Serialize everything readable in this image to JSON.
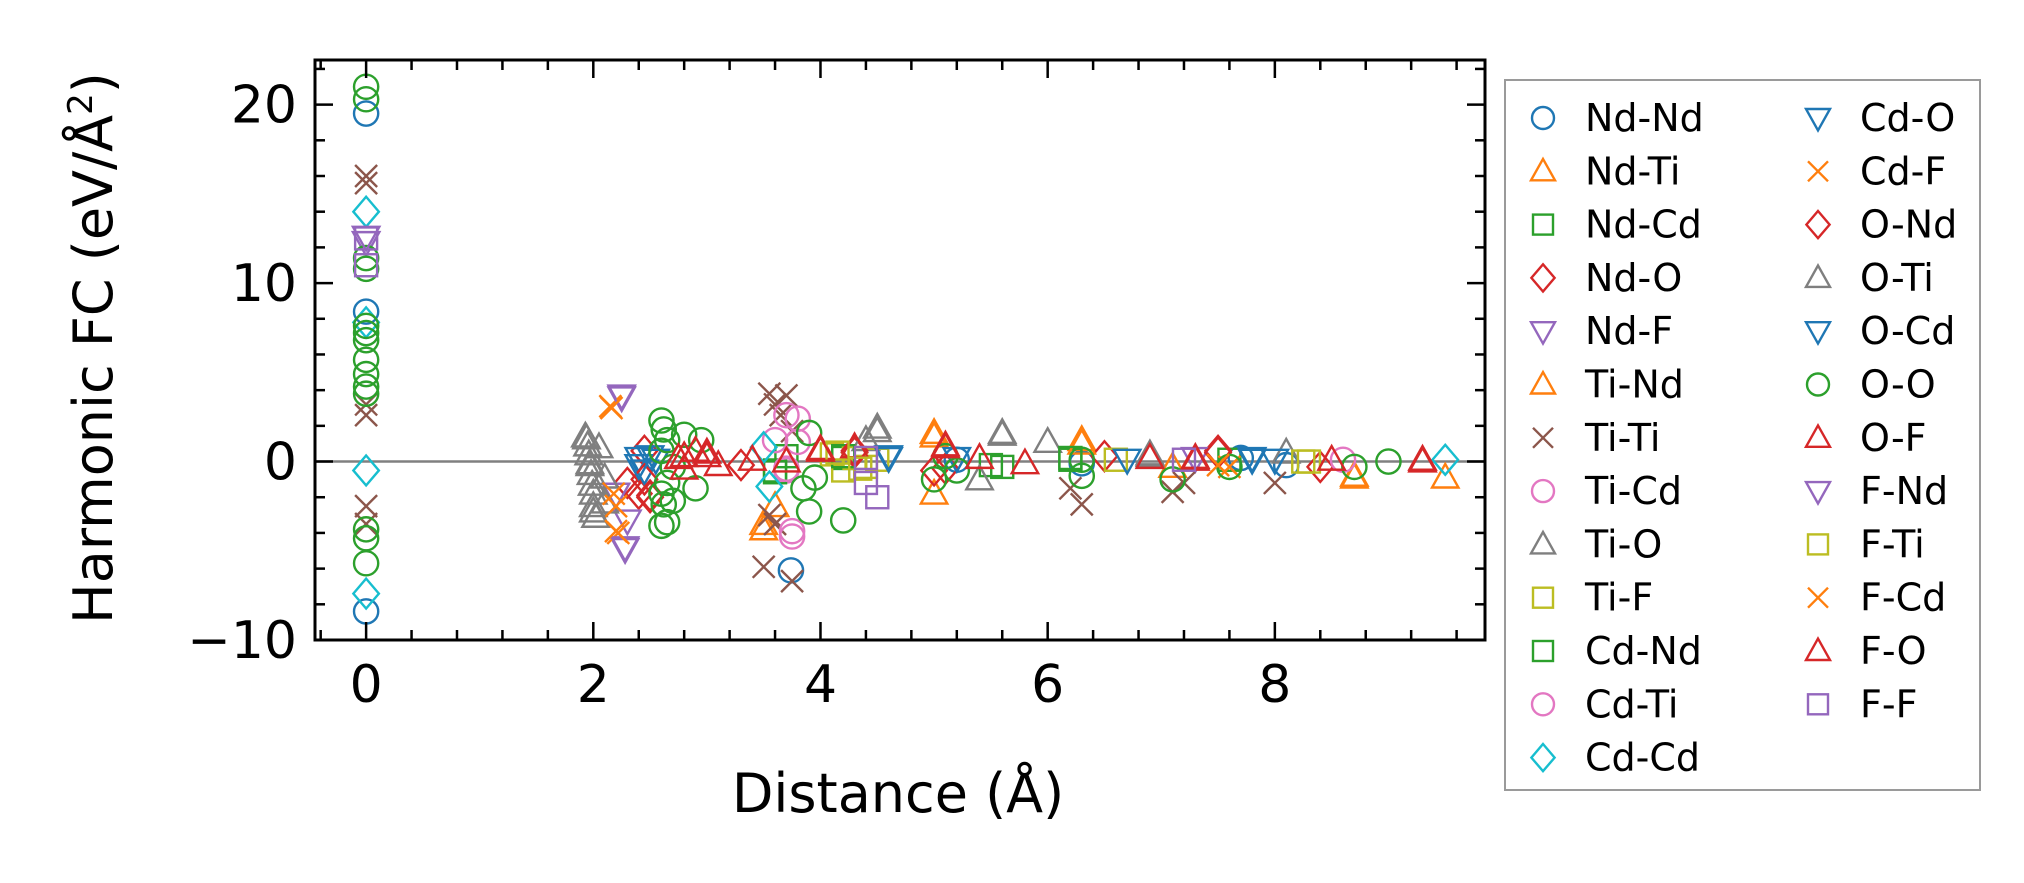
{
  "chart_data": {
    "type": "scatter",
    "title": "",
    "xlabel": "Distance (Å)",
    "ylabel": "Harmonic FC (eV/Å²)",
    "ylabel_main": "Harmonic FC (eV/Å",
    "ylabel_sup": "2",
    "ylabel_close": ")",
    "xlim": [
      -0.45,
      9.85
    ],
    "ylim": [
      -10,
      22.5
    ],
    "xticks": [
      0,
      2,
      4,
      6,
      8
    ],
    "xtick_labels": [
      "0",
      "2",
      "4",
      "6",
      "8"
    ],
    "yticks": [
      -10,
      0,
      10,
      20
    ],
    "ytick_labels": [
      "−10",
      "0",
      "10",
      "20"
    ],
    "grid": false,
    "zero_line": true,
    "legend_position": "right, outside plot",
    "series": [
      {
        "name": "Nd-Nd",
        "marker": "circle",
        "color": "#1f77b4",
        "points": [
          [
            0,
            19.5
          ],
          [
            0,
            8.4
          ],
          [
            0,
            -8.4
          ],
          [
            3.74,
            -6.1
          ],
          [
            5.2,
            0.1
          ],
          [
            6.3,
            -0.1
          ],
          [
            7.7,
            0.2
          ],
          [
            8.1,
            -0.2
          ]
        ]
      },
      {
        "name": "Nd-Ti",
        "marker": "triangle-up",
        "color": "#ff7f0e",
        "points": [
          [
            3.5,
            -3.8
          ],
          [
            3.6,
            -2.5
          ],
          [
            5.0,
            1.6
          ],
          [
            5.0,
            -1.8
          ],
          [
            6.3,
            1.2
          ],
          [
            7.1,
            -0.3
          ],
          [
            8.7,
            -0.9
          ],
          [
            9.5,
            -0.9
          ]
        ]
      },
      {
        "name": "Nd-Cd",
        "marker": "square",
        "color": "#2ca02c",
        "points": [
          [
            3.6,
            -0.5
          ],
          [
            3.7,
            0.3
          ],
          [
            4.2,
            0.2
          ],
          [
            5.5,
            -0.2
          ],
          [
            6.2,
            0.1
          ],
          [
            7.6,
            0.1
          ]
        ]
      },
      {
        "name": "Nd-O",
        "marker": "diamond",
        "color": "#d62728",
        "points": [
          [
            2.3,
            -1.2
          ],
          [
            2.4,
            -1.8
          ],
          [
            2.45,
            0.6
          ],
          [
            2.5,
            -2.0
          ],
          [
            3.3,
            -0.2
          ],
          [
            4.3,
            0.5
          ],
          [
            5.1,
            -0.4
          ],
          [
            6.5,
            0.3
          ],
          [
            7.5,
            0.6
          ],
          [
            8.4,
            -0.3
          ]
        ]
      },
      {
        "name": "Nd-F",
        "marker": "triangle-down",
        "color": "#9467bd",
        "points": [
          [
            0,
            12.3
          ],
          [
            2.2,
            -1.8
          ],
          [
            2.25,
            3.7
          ],
          [
            2.28,
            -4.9
          ],
          [
            2.3,
            -3.3
          ],
          [
            7.3,
            0.2
          ]
        ]
      },
      {
        "name": "Ti-Nd",
        "marker": "triangle-up",
        "color": "#ff7f0e",
        "points": [
          [
            3.5,
            -3.5
          ],
          [
            5.0,
            1.4
          ],
          [
            6.3,
            1.0
          ],
          [
            8.7,
            -0.8
          ]
        ]
      },
      {
        "name": "Ti-Ti",
        "marker": "x",
        "color": "#8c564b",
        "points": [
          [
            0,
            16.0
          ],
          [
            0,
            15.6
          ],
          [
            0,
            3.2
          ],
          [
            0,
            2.6
          ],
          [
            0,
            -2.5
          ],
          [
            0,
            -3.5
          ],
          [
            3.55,
            3.8
          ],
          [
            3.6,
            3.2
          ],
          [
            3.65,
            2.6
          ],
          [
            3.55,
            -3.0
          ],
          [
            3.6,
            -3.5
          ],
          [
            3.5,
            -5.9
          ],
          [
            3.75,
            -6.7
          ],
          [
            3.7,
            3.7
          ],
          [
            3.75,
            1.7
          ],
          [
            6.2,
            -1.5
          ],
          [
            6.3,
            -2.4
          ],
          [
            7.1,
            -1.7
          ],
          [
            7.2,
            -1.2
          ],
          [
            8.0,
            -1.2
          ]
        ]
      },
      {
        "name": "Ti-Cd",
        "marker": "circle",
        "color": "#e377c2",
        "points": [
          [
            3.6,
            1.2
          ],
          [
            3.7,
            -0.5
          ],
          [
            3.75,
            -4.2
          ],
          [
            3.8,
            2.4
          ],
          [
            3.7,
            2.6
          ],
          [
            8.6,
            0.1
          ]
        ]
      },
      {
        "name": "Ti-O",
        "marker": "triangle-up",
        "color": "#7f7f7f",
        "points": [
          [
            1.93,
            1.4
          ],
          [
            1.95,
            0.9
          ],
          [
            1.96,
            0.4
          ],
          [
            1.97,
            -0.2
          ],
          [
            1.98,
            -0.7
          ],
          [
            1.99,
            -1.3
          ],
          [
            2.0,
            -1.8
          ],
          [
            2.0,
            -2.5
          ],
          [
            2.02,
            -3.1
          ],
          [
            2.05,
            0.8
          ],
          [
            2.1,
            -0.9
          ],
          [
            2.1,
            -2.3
          ],
          [
            4.5,
            1.9
          ],
          [
            4.4,
            1.2
          ],
          [
            5.4,
            -1.0
          ],
          [
            5.6,
            1.6
          ],
          [
            6.0,
            1.1
          ],
          [
            6.9,
            0.4
          ],
          [
            8.1,
            0.5
          ]
        ]
      },
      {
        "name": "Ti-F",
        "marker": "square",
        "color": "#bcbd22",
        "points": [
          [
            4.1,
            0.4
          ],
          [
            4.2,
            -0.5
          ],
          [
            4.3,
            0.2
          ],
          [
            4.4,
            -0.3
          ],
          [
            4.5,
            0.1
          ],
          [
            6.6,
            0.1
          ],
          [
            8.3,
            0.0
          ]
        ]
      },
      {
        "name": "Cd-Nd",
        "marker": "square",
        "color": "#2ca02c",
        "points": [
          [
            3.6,
            -0.6
          ],
          [
            4.2,
            0.3
          ],
          [
            5.6,
            -0.3
          ],
          [
            6.2,
            0.2
          ]
        ]
      },
      {
        "name": "Cd-Ti",
        "marker": "circle",
        "color": "#e377c2",
        "points": [
          [
            3.7,
            -0.4
          ],
          [
            3.8,
            1.1
          ],
          [
            3.75,
            -3.9
          ]
        ]
      },
      {
        "name": "Cd-Cd",
        "marker": "diamond",
        "color": "#17becf",
        "points": [
          [
            0,
            14.0
          ],
          [
            0,
            7.8
          ],
          [
            0,
            -0.5
          ],
          [
            0,
            -7.4
          ],
          [
            3.5,
            0.8
          ],
          [
            3.55,
            -1.4
          ],
          [
            9.5,
            0.1
          ]
        ]
      },
      {
        "name": "Cd-O",
        "marker": "triangle-down",
        "color": "#1f77b4",
        "points": [
          [
            2.4,
            0.2
          ],
          [
            2.45,
            -0.5
          ],
          [
            2.5,
            0.3
          ],
          [
            4.6,
            0.3
          ],
          [
            5.2,
            0.2
          ],
          [
            6.7,
            0.1
          ],
          [
            7.8,
            0.2
          ],
          [
            8.0,
            0.1
          ]
        ]
      },
      {
        "name": "Cd-F",
        "marker": "x",
        "color": "#ff7f0e",
        "points": [
          [
            2.15,
            3.1
          ],
          [
            2.2,
            -2.5
          ],
          [
            2.22,
            -4.0
          ],
          [
            2.18,
            -1.8
          ],
          [
            7.6,
            -0.3
          ]
        ]
      },
      {
        "name": "O-Nd",
        "marker": "diamond",
        "color": "#d62728",
        "points": [
          [
            2.45,
            -1.0
          ],
          [
            2.5,
            -1.9
          ],
          [
            4.3,
            0.6
          ],
          [
            5.0,
            -0.5
          ],
          [
            7.5,
            0.5
          ]
        ]
      },
      {
        "name": "O-Ti",
        "marker": "triangle-up",
        "color": "#7f7f7f",
        "points": [
          [
            1.94,
            1.3
          ],
          [
            1.97,
            -0.1
          ],
          [
            2.0,
            -2.8
          ],
          [
            4.5,
            1.7
          ],
          [
            5.6,
            1.5
          ],
          [
            6.9,
            0.3
          ]
        ]
      },
      {
        "name": "O-Cd",
        "marker": "triangle-down",
        "color": "#1f77b4",
        "points": [
          [
            2.4,
            -0.2
          ],
          [
            2.55,
            0.1
          ],
          [
            4.6,
            0.2
          ],
          [
            7.8,
            0.1
          ]
        ]
      },
      {
        "name": "O-O",
        "marker": "circle",
        "color": "#2ca02c",
        "points": [
          [
            0,
            21.0
          ],
          [
            0,
            20.3
          ],
          [
            0,
            11.4
          ],
          [
            0,
            10.8
          ],
          [
            0,
            7.6
          ],
          [
            0,
            7.2
          ],
          [
            0,
            6.8
          ],
          [
            0,
            5.7
          ],
          [
            0,
            4.9
          ],
          [
            0,
            4.2
          ],
          [
            0,
            3.8
          ],
          [
            0,
            -3.8
          ],
          [
            0,
            -4.3
          ],
          [
            0,
            -5.7
          ],
          [
            2.6,
            2.3
          ],
          [
            2.62,
            1.8
          ],
          [
            2.65,
            1.2
          ],
          [
            2.6,
            0.6
          ],
          [
            2.7,
            -0.3
          ],
          [
            2.65,
            -1.2
          ],
          [
            2.6,
            -1.8
          ],
          [
            2.62,
            -2.4
          ],
          [
            2.6,
            -3.6
          ],
          [
            2.65,
            -3.4
          ],
          [
            2.8,
            1.5
          ],
          [
            2.9,
            -1.5
          ],
          [
            2.95,
            1.2
          ],
          [
            2.7,
            -2.2
          ],
          [
            3.9,
            1.6
          ],
          [
            3.85,
            -1.5
          ],
          [
            3.9,
            -2.8
          ],
          [
            4.2,
            -3.3
          ],
          [
            3.95,
            -0.9
          ],
          [
            5.0,
            -1.0
          ],
          [
            5.2,
            -0.5
          ],
          [
            5.1,
            0.3
          ],
          [
            6.3,
            0.1
          ],
          [
            6.3,
            -0.8
          ],
          [
            7.1,
            -1.0
          ],
          [
            7.6,
            -0.3
          ],
          [
            8.7,
            -0.3
          ],
          [
            9.0,
            0.0
          ]
        ]
      },
      {
        "name": "O-F",
        "marker": "triangle-up",
        "color": "#d62728",
        "points": [
          [
            2.75,
            0.2
          ],
          [
            2.8,
            -0.4
          ],
          [
            2.9,
            0.6
          ],
          [
            3.0,
            0.3
          ],
          [
            3.1,
            -0.2
          ],
          [
            3.4,
            0.1
          ],
          [
            3.7,
            0.0
          ],
          [
            4.0,
            0.7
          ],
          [
            4.3,
            0.8
          ],
          [
            5.1,
            0.9
          ],
          [
            5.4,
            0.2
          ],
          [
            5.8,
            -0.1
          ],
          [
            6.9,
            0.2
          ],
          [
            7.3,
            0.1
          ],
          [
            8.5,
            0.1
          ],
          [
            9.3,
            0.0
          ]
        ]
      },
      {
        "name": "F-Nd",
        "marker": "triangle-down",
        "color": "#9467bd",
        "points": [
          [
            0,
            12.6
          ],
          [
            2.25,
            3.6
          ],
          [
            2.28,
            -4.8
          ]
        ]
      },
      {
        "name": "F-Ti",
        "marker": "square",
        "color": "#bcbd22",
        "points": [
          [
            4.15,
            0.5
          ],
          [
            4.35,
            -0.4
          ],
          [
            8.25,
            0.0
          ]
        ]
      },
      {
        "name": "F-Cd",
        "marker": "x",
        "color": "#ff7f0e",
        "points": [
          [
            2.16,
            3.0
          ],
          [
            2.2,
            -3.9
          ],
          [
            7.5,
            -0.2
          ]
        ]
      },
      {
        "name": "F-O",
        "marker": "triangle-up",
        "color": "#d62728",
        "points": [
          [
            2.8,
            0.3
          ],
          [
            3.0,
            0.5
          ],
          [
            4.0,
            0.6
          ],
          [
            5.1,
            0.8
          ],
          [
            7.3,
            0.2
          ],
          [
            9.3,
            0.1
          ]
        ]
      },
      {
        "name": "F-F",
        "marker": "square",
        "color": "#9467bd",
        "points": [
          [
            0,
            12.5
          ],
          [
            0,
            11.0
          ],
          [
            4.4,
            0.2
          ],
          [
            4.5,
            -2.0
          ],
          [
            4.4,
            -1.2
          ],
          [
            7.2,
            0.1
          ]
        ]
      }
    ]
  }
}
